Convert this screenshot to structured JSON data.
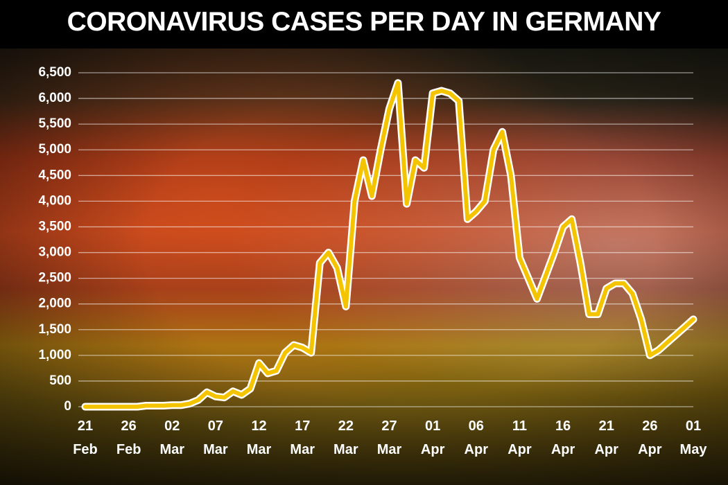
{
  "chart_data": {
    "type": "line",
    "title": "CORONAVIRUS CASES PER DAY IN GERMANY",
    "categories": [
      "21 Feb",
      null,
      null,
      null,
      null,
      "26 Feb",
      null,
      null,
      null,
      null,
      "02 Mar",
      null,
      null,
      null,
      null,
      "07 Mar",
      null,
      null,
      null,
      null,
      "12 Mar",
      null,
      null,
      null,
      null,
      "17 Mar",
      null,
      null,
      null,
      null,
      "22 Mar",
      null,
      null,
      null,
      null,
      "27 Mar",
      null,
      null,
      null,
      null,
      "01 Apr",
      null,
      null,
      null,
      null,
      "06 Apr",
      null,
      null,
      null,
      null,
      "11 Apr",
      null,
      null,
      null,
      null,
      "16 Apr",
      null,
      null,
      null,
      null,
      "21 Apr",
      null,
      null,
      null,
      null,
      "26 Apr",
      null,
      null,
      null,
      null,
      "01 May"
    ],
    "values": [
      0,
      0,
      0,
      0,
      0,
      0,
      0,
      20,
      20,
      20,
      30,
      30,
      60,
      130,
      280,
      200,
      180,
      300,
      230,
      350,
      850,
      650,
      700,
      1050,
      1200,
      1150,
      1050,
      2800,
      3000,
      2700,
      1950,
      4000,
      4800,
      4100,
      5000,
      5800,
      6300,
      3950,
      4800,
      4650,
      6100,
      6150,
      6100,
      5950,
      3650,
      3800,
      4000,
      5000,
      5350,
      4500,
      2900,
      2500,
      2100,
      2550,
      3000,
      3500,
      3650,
      2800,
      1800,
      1800,
      2300,
      2400,
      2400,
      2200,
      1700,
      1000,
      1100,
      1250,
      1400,
      1550,
      1700
    ],
    "color": "#f5c400",
    "ylim": [
      0,
      6500
    ],
    "yticks": [
      0,
      500,
      {
        "value": 1000,
        "label": "1,000"
      },
      {
        "value": 1500,
        "label": "1,500"
      },
      {
        "value": 2000,
        "label": "2,000"
      },
      {
        "value": 2500,
        "label": "2,500"
      },
      {
        "value": 3000,
        "label": "3,000"
      },
      {
        "value": 3500,
        "label": "3,500"
      },
      {
        "value": 4000,
        "label": "4,000"
      },
      {
        "value": 4500,
        "label": "4,500"
      },
      {
        "value": 5000,
        "label": "5,000"
      },
      {
        "value": 5500,
        "label": "5,500"
      },
      {
        "value": 6000,
        "label": "6,000"
      },
      {
        "value": 6500,
        "label": "6,500"
      }
    ],
    "grid": true
  }
}
